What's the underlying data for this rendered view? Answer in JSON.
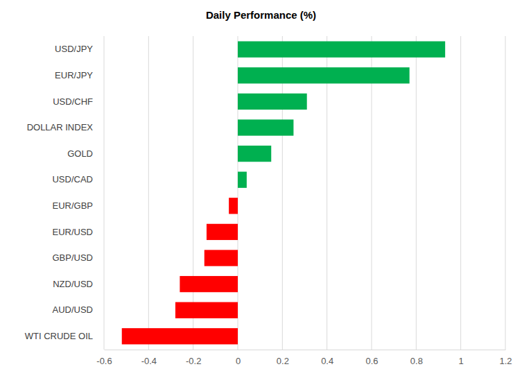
{
  "chart_data": {
    "type": "bar",
    "title": "Daily Performance (%)",
    "orientation": "horizontal",
    "categories": [
      "USD/JPY",
      "EUR/JPY",
      "USD/CHF",
      "DOLLAR INDEX",
      "GOLD",
      "USD/CAD",
      "EUR/GBP",
      "EUR/USD",
      "GBP/USD",
      "NZD/USD",
      "AUD/USD",
      "WTI CRUDE OIL"
    ],
    "values": [
      0.93,
      0.77,
      0.31,
      0.25,
      0.15,
      0.04,
      -0.04,
      -0.14,
      -0.15,
      -0.26,
      -0.28,
      -0.52
    ],
    "colors": [
      "#00b050",
      "#00b050",
      "#00b050",
      "#00b050",
      "#00b050",
      "#00b050",
      "#ff0000",
      "#ff0000",
      "#ff0000",
      "#ff0000",
      "#ff0000",
      "#ff0000"
    ],
    "xlim": [
      -0.6,
      1.2
    ],
    "xticks": [
      -0.6,
      -0.4,
      -0.2,
      0,
      0.2,
      0.4,
      0.6,
      0.8,
      1,
      1.2
    ],
    "grid": true
  }
}
